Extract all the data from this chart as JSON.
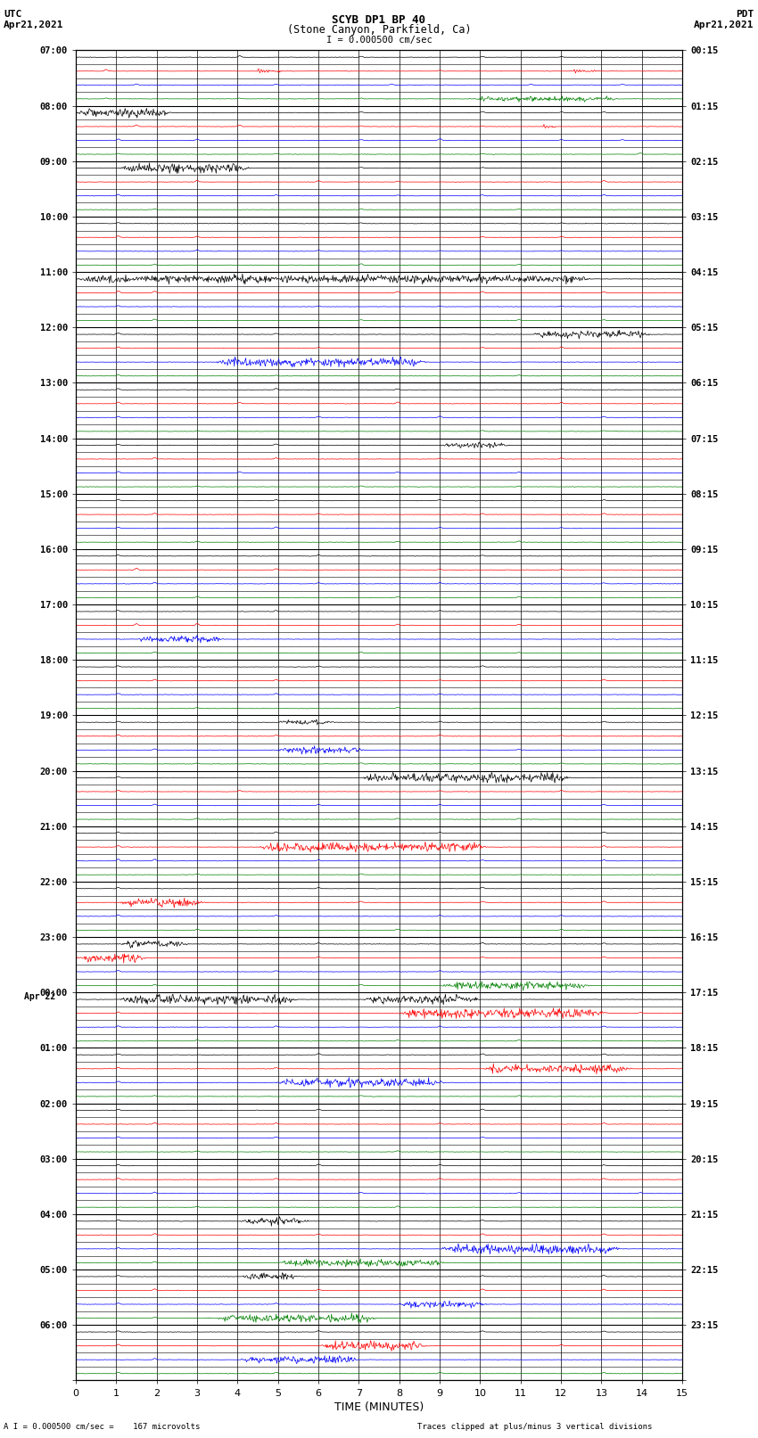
{
  "title_line1": "SCYB DP1 BP 40",
  "title_line2": "(Stone Canyon, Parkfield, Ca)",
  "scale_label": "I = 0.000500 cm/sec",
  "left_label_line1": "UTC",
  "left_label_line2": "Apr21,2021",
  "right_label_line1": "PDT",
  "right_label_line2": "Apr21,2021",
  "bottom_label1": "A I = 0.000500 cm/sec =    167 microvolts",
  "bottom_label2": "Traces clipped at plus/minus 3 vertical divisions",
  "xlabel": "TIME (MINUTES)",
  "xmin": 0,
  "xmax": 15,
  "num_rows": 96,
  "background_color": "#ffffff",
  "grid_color": "#000000",
  "trace_colors": [
    "#000000",
    "#ff0000",
    "#0000ff",
    "#008000"
  ],
  "hour_labels_left": [
    "07:00",
    "08:00",
    "09:00",
    "10:00",
    "11:00",
    "12:00",
    "13:00",
    "14:00",
    "15:00",
    "16:00",
    "17:00",
    "18:00",
    "19:00",
    "20:00",
    "21:00",
    "22:00",
    "23:00",
    "00:00",
    "01:00",
    "02:00",
    "03:00",
    "04:00",
    "05:00",
    "06:00"
  ],
  "hour_labels_right": [
    "00:15",
    "01:15",
    "02:15",
    "03:15",
    "04:15",
    "05:15",
    "06:15",
    "07:15",
    "08:15",
    "09:15",
    "10:15",
    "11:15",
    "12:15",
    "13:15",
    "14:15",
    "15:15",
    "16:15",
    "17:15",
    "18:15",
    "19:15",
    "20:15",
    "21:15",
    "22:15",
    "23:15"
  ],
  "apr22_label": "Apr 22",
  "minute_ticks": [
    0,
    1,
    2,
    3,
    4,
    5,
    6,
    7,
    8,
    9,
    10,
    11,
    12,
    13,
    14,
    15
  ]
}
